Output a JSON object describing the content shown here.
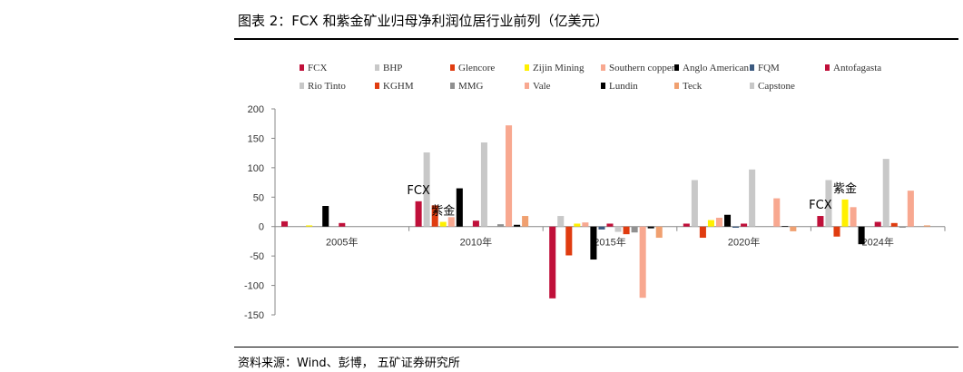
{
  "header": {
    "title": "图表 2：FCX 和紫金矿业归母净利润位居行业前列（亿美元）"
  },
  "footer": {
    "source": "资料来源：Wind、彭博， 五矿证券研究所"
  },
  "chart_data": {
    "type": "bar",
    "categories": [
      "2005年",
      "2010年",
      "2015年",
      "2020年",
      "2024年"
    ],
    "ylim": [
      -150,
      200
    ],
    "yticks": [
      -150,
      -100,
      -50,
      0,
      50,
      100,
      150,
      200
    ],
    "xlabel": "",
    "ylabel": "",
    "legend_position": "top",
    "series": [
      {
        "name": "FCX",
        "color": "#C0103A",
        "values": [
          9,
          43,
          -122,
          5,
          18
        ]
      },
      {
        "name": "BHP",
        "color": "#C8C8C8",
        "values": [
          0,
          126,
          18,
          79,
          79
        ]
      },
      {
        "name": "Glencore",
        "color": "#E03C10",
        "values": [
          0,
          36,
          -49,
          -19,
          -17
        ]
      },
      {
        "name": "Zijin Mining",
        "color": "#FFF000",
        "values": [
          2,
          8,
          5,
          11,
          46
        ]
      },
      {
        "name": "Southern copper",
        "color": "#F8A890",
        "values": [
          0,
          16,
          7,
          15,
          33
        ]
      },
      {
        "name": "Anglo American",
        "color": "#000000",
        "values": [
          35,
          65,
          -56,
          20,
          -30
        ]
      },
      {
        "name": "FQM",
        "color": "#3C5A80",
        "values": [
          0,
          0,
          -5,
          -2,
          0
        ]
      },
      {
        "name": "Antofagasta",
        "color": "#C0103A",
        "values": [
          6,
          10,
          5,
          5,
          8
        ]
      },
      {
        "name": "Rio Tinto",
        "color": "#C8C8C8",
        "values": [
          0,
          143,
          -9,
          97,
          115
        ]
      },
      {
        "name": "KGHM",
        "color": "#E03C10",
        "values": [
          0,
          0,
          -13,
          0,
          6
        ]
      },
      {
        "name": "MMG",
        "color": "#909090",
        "values": [
          0,
          4,
          -10,
          0,
          -2
        ]
      },
      {
        "name": "Vale",
        "color": "#F8A890",
        "values": [
          0,
          172,
          -121,
          48,
          61
        ]
      },
      {
        "name": "Lundin",
        "color": "#000000",
        "values": [
          0,
          3,
          -3,
          1,
          0
        ]
      },
      {
        "name": "Teck",
        "color": "#F0A070",
        "values": [
          0,
          18,
          -19,
          -8,
          2
        ]
      },
      {
        "name": "Capstone",
        "color": "#C8C8C8",
        "values": [
          0,
          0,
          0,
          0,
          0
        ]
      }
    ],
    "annotations": [
      {
        "text": "FCX",
        "category": "2010年",
        "series": "FCX"
      },
      {
        "text": "紫金",
        "category": "2010年",
        "series": "Zijin Mining"
      },
      {
        "text": "FCX",
        "category": "2024年",
        "series": "FCX"
      },
      {
        "text": "紫金",
        "category": "2024年",
        "series": "Zijin Mining"
      }
    ]
  }
}
